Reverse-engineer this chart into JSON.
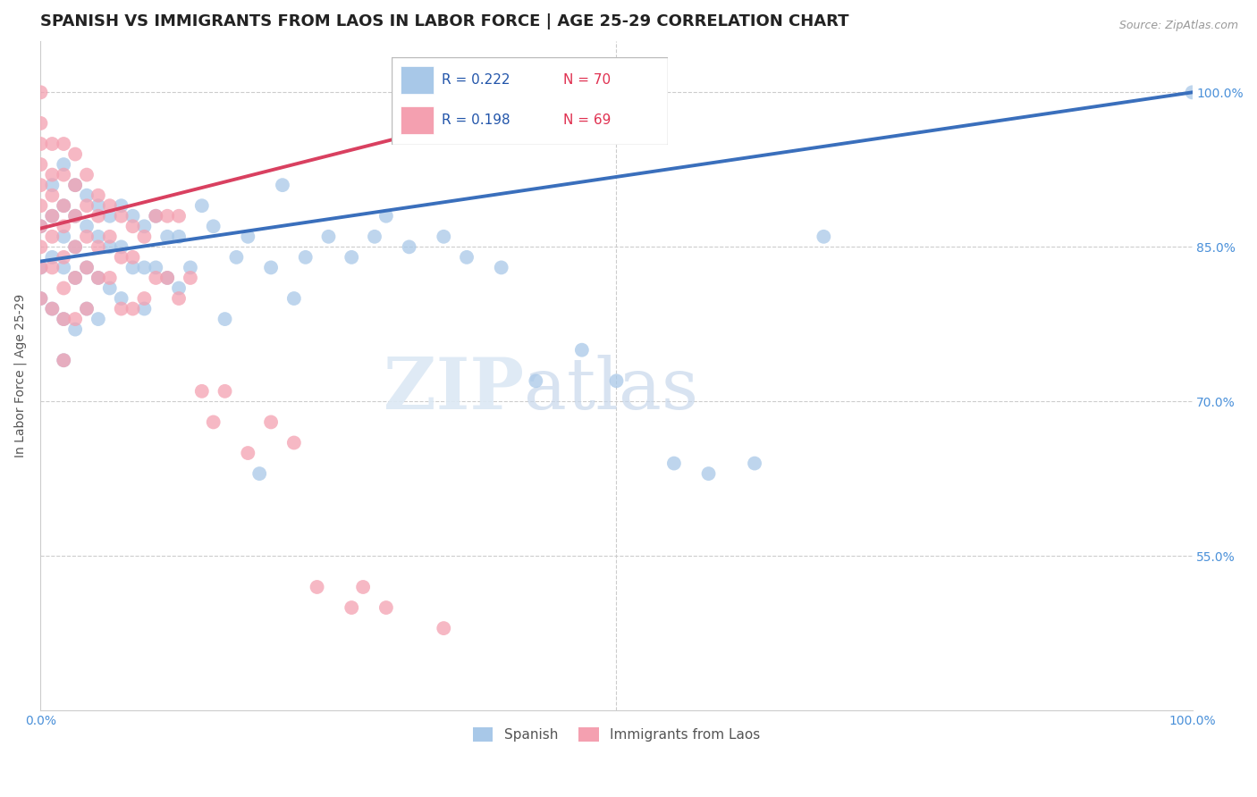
{
  "title": "SPANISH VS IMMIGRANTS FROM LAOS IN LABOR FORCE | AGE 25-29 CORRELATION CHART",
  "source": "Source: ZipAtlas.com",
  "ylabel": "In Labor Force | Age 25-29",
  "xlim": [
    0.0,
    1.0
  ],
  "ylim": [
    0.4,
    1.05
  ],
  "ytick_labels_right": [
    "55.0%",
    "70.0%",
    "85.0%",
    "100.0%"
  ],
  "ytick_vals_right": [
    0.55,
    0.7,
    0.85,
    1.0
  ],
  "legend_R_blue": "R = 0.222",
  "legend_N_blue": "N = 70",
  "legend_R_pink": "R = 0.198",
  "legend_N_pink": "N = 69",
  "series_blue_label": "Spanish",
  "series_pink_label": "Immigrants from Laos",
  "blue_color": "#a8c8e8",
  "pink_color": "#f4a0b0",
  "blue_line_color": "#3a6fbc",
  "pink_line_color": "#d94060",
  "background_color": "#ffffff",
  "watermark_zip": "ZIP",
  "watermark_atlas": "atlas",
  "title_fontsize": 13,
  "axis_label_fontsize": 10,
  "tick_fontsize": 10,
  "blue_scatter_x": [
    0.0,
    0.0,
    0.0,
    0.01,
    0.01,
    0.01,
    0.01,
    0.02,
    0.02,
    0.02,
    0.02,
    0.02,
    0.02,
    0.03,
    0.03,
    0.03,
    0.03,
    0.03,
    0.04,
    0.04,
    0.04,
    0.04,
    0.05,
    0.05,
    0.05,
    0.05,
    0.06,
    0.06,
    0.06,
    0.07,
    0.07,
    0.07,
    0.08,
    0.08,
    0.09,
    0.09,
    0.09,
    0.1,
    0.1,
    0.11,
    0.11,
    0.12,
    0.12,
    0.13,
    0.14,
    0.15,
    0.16,
    0.17,
    0.18,
    0.19,
    0.2,
    0.21,
    0.22,
    0.23,
    0.25,
    0.27,
    0.29,
    0.3,
    0.32,
    0.35,
    0.37,
    0.4,
    0.43,
    0.47,
    0.5,
    0.55,
    0.58,
    0.62,
    0.68,
    1.0
  ],
  "blue_scatter_y": [
    0.87,
    0.83,
    0.8,
    0.91,
    0.88,
    0.84,
    0.79,
    0.93,
    0.89,
    0.86,
    0.83,
    0.78,
    0.74,
    0.91,
    0.88,
    0.85,
    0.82,
    0.77,
    0.9,
    0.87,
    0.83,
    0.79,
    0.89,
    0.86,
    0.82,
    0.78,
    0.88,
    0.85,
    0.81,
    0.89,
    0.85,
    0.8,
    0.88,
    0.83,
    0.87,
    0.83,
    0.79,
    0.88,
    0.83,
    0.86,
    0.82,
    0.86,
    0.81,
    0.83,
    0.89,
    0.87,
    0.78,
    0.84,
    0.86,
    0.63,
    0.83,
    0.91,
    0.8,
    0.84,
    0.86,
    0.84,
    0.86,
    0.88,
    0.85,
    0.86,
    0.84,
    0.83,
    0.72,
    0.75,
    0.72,
    0.64,
    0.63,
    0.64,
    0.86,
    1.0
  ],
  "pink_scatter_x": [
    0.0,
    0.0,
    0.0,
    0.0,
    0.0,
    0.0,
    0.0,
    0.0,
    0.0,
    0.0,
    0.01,
    0.01,
    0.01,
    0.01,
    0.01,
    0.01,
    0.01,
    0.02,
    0.02,
    0.02,
    0.02,
    0.02,
    0.02,
    0.02,
    0.02,
    0.03,
    0.03,
    0.03,
    0.03,
    0.03,
    0.03,
    0.04,
    0.04,
    0.04,
    0.04,
    0.04,
    0.05,
    0.05,
    0.05,
    0.05,
    0.06,
    0.06,
    0.06,
    0.07,
    0.07,
    0.07,
    0.08,
    0.08,
    0.08,
    0.09,
    0.09,
    0.1,
    0.1,
    0.11,
    0.11,
    0.12,
    0.12,
    0.13,
    0.14,
    0.15,
    0.16,
    0.18,
    0.2,
    0.22,
    0.24,
    0.27,
    0.28,
    0.3,
    0.35
  ],
  "pink_scatter_y": [
    1.0,
    0.97,
    0.95,
    0.93,
    0.91,
    0.89,
    0.87,
    0.85,
    0.83,
    0.8,
    0.95,
    0.92,
    0.9,
    0.88,
    0.86,
    0.83,
    0.79,
    0.95,
    0.92,
    0.89,
    0.87,
    0.84,
    0.81,
    0.78,
    0.74,
    0.94,
    0.91,
    0.88,
    0.85,
    0.82,
    0.78,
    0.92,
    0.89,
    0.86,
    0.83,
    0.79,
    0.9,
    0.88,
    0.85,
    0.82,
    0.89,
    0.86,
    0.82,
    0.88,
    0.84,
    0.79,
    0.87,
    0.84,
    0.79,
    0.86,
    0.8,
    0.88,
    0.82,
    0.88,
    0.82,
    0.88,
    0.8,
    0.82,
    0.71,
    0.68,
    0.71,
    0.65,
    0.68,
    0.66,
    0.52,
    0.5,
    0.52,
    0.5,
    0.48
  ]
}
